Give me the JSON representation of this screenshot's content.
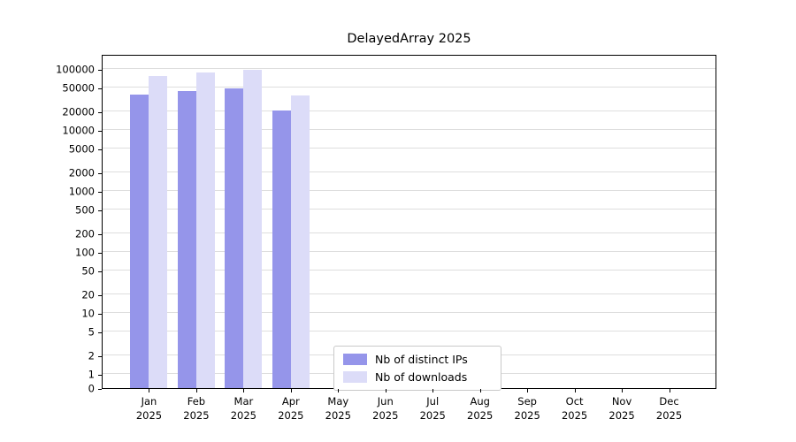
{
  "chart_data": {
    "type": "bar",
    "title": "DelayedArray 2025",
    "year_label": "2025",
    "categories": [
      "Jan",
      "Feb",
      "Mar",
      "Apr",
      "May",
      "Jun",
      "Jul",
      "Aug",
      "Sep",
      "Oct",
      "Nov",
      "Dec"
    ],
    "series": [
      {
        "name": "Nb of distinct IPs",
        "color": "#9595ea",
        "values": [
          38000,
          43000,
          48000,
          21000,
          0,
          0,
          0,
          0,
          0,
          0,
          0,
          0
        ]
      },
      {
        "name": "Nb of downloads",
        "color": "#dcdcf8",
        "values": [
          76000,
          87000,
          98000,
          37000,
          0,
          0,
          0,
          0,
          0,
          0,
          0,
          0
        ]
      }
    ],
    "yticks": [
      0,
      1,
      2,
      5,
      10,
      20,
      50,
      100,
      200,
      500,
      1000,
      2000,
      5000,
      10000,
      20000,
      50000,
      100000
    ],
    "yscale": "symlog",
    "ylim": [
      0,
      100000
    ],
    "grid": true,
    "legend_position": "bottom-center"
  }
}
